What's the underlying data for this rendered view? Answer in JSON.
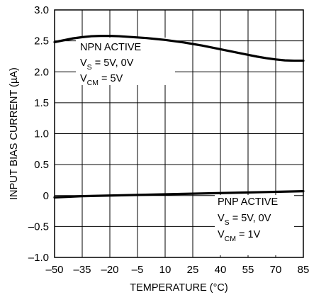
{
  "chart_data": {
    "type": "line",
    "title": "",
    "xlabel": "TEMPERATURE (°C)",
    "ylabel": "INPUT BIAS CURRENT (µA)",
    "xlim": [
      -50,
      85
    ],
    "ylim": [
      -1.0,
      3.0
    ],
    "xticks": [
      -50,
      -35,
      -20,
      -5,
      10,
      25,
      40,
      55,
      70,
      85
    ],
    "xtick_labels": [
      "–50",
      "–35",
      "–20",
      "–5",
      "10",
      "25",
      "40",
      "55",
      "70",
      "85"
    ],
    "yticks": [
      -1.0,
      -0.5,
      0,
      0.5,
      1.0,
      1.5,
      2.0,
      2.5,
      3.0
    ],
    "ytick_labels": [
      "–1.0",
      "–0.5",
      "0",
      "0.5",
      "1.0",
      "1.5",
      "2.0",
      "2.5",
      "3.0"
    ],
    "grid": true,
    "series": [
      {
        "name": "NPN ACTIVE",
        "x": [
          -50,
          -45,
          -40,
          -35,
          -30,
          -25,
          -20,
          -15,
          -10,
          -5,
          0,
          5,
          10,
          15,
          20,
          25,
          30,
          35,
          40,
          45,
          50,
          55,
          60,
          65,
          70,
          75,
          80,
          85
        ],
        "y": [
          2.48,
          2.51,
          2.54,
          2.56,
          2.575,
          2.58,
          2.58,
          2.575,
          2.565,
          2.555,
          2.545,
          2.53,
          2.515,
          2.495,
          2.475,
          2.45,
          2.425,
          2.395,
          2.365,
          2.335,
          2.305,
          2.275,
          2.245,
          2.22,
          2.2,
          2.185,
          2.18,
          2.18
        ]
      },
      {
        "name": "PNP ACTIVE",
        "x": [
          -50,
          -35,
          -20,
          -5,
          10,
          25,
          40,
          55,
          70,
          85
        ],
        "y": [
          -0.03,
          -0.01,
          0.0,
          0.01,
          0.02,
          0.03,
          0.04,
          0.05,
          0.06,
          0.07
        ]
      }
    ],
    "annotations": [
      {
        "id": "npn",
        "lines": [
          {
            "main": "NPN ACTIVE"
          },
          {
            "main": "V",
            "sub": "S",
            "rest": " = 5V, 0V"
          },
          {
            "main": "V",
            "sub": "CM",
            "rest": " = 5V"
          }
        ]
      },
      {
        "id": "pnp",
        "lines": [
          {
            "main": "PNP ACTIVE"
          },
          {
            "main": "V",
            "sub": "S",
            "rest": " = 5V, 0V"
          },
          {
            "main": "V",
            "sub": "CM",
            "rest": " = 1V"
          }
        ]
      }
    ]
  }
}
